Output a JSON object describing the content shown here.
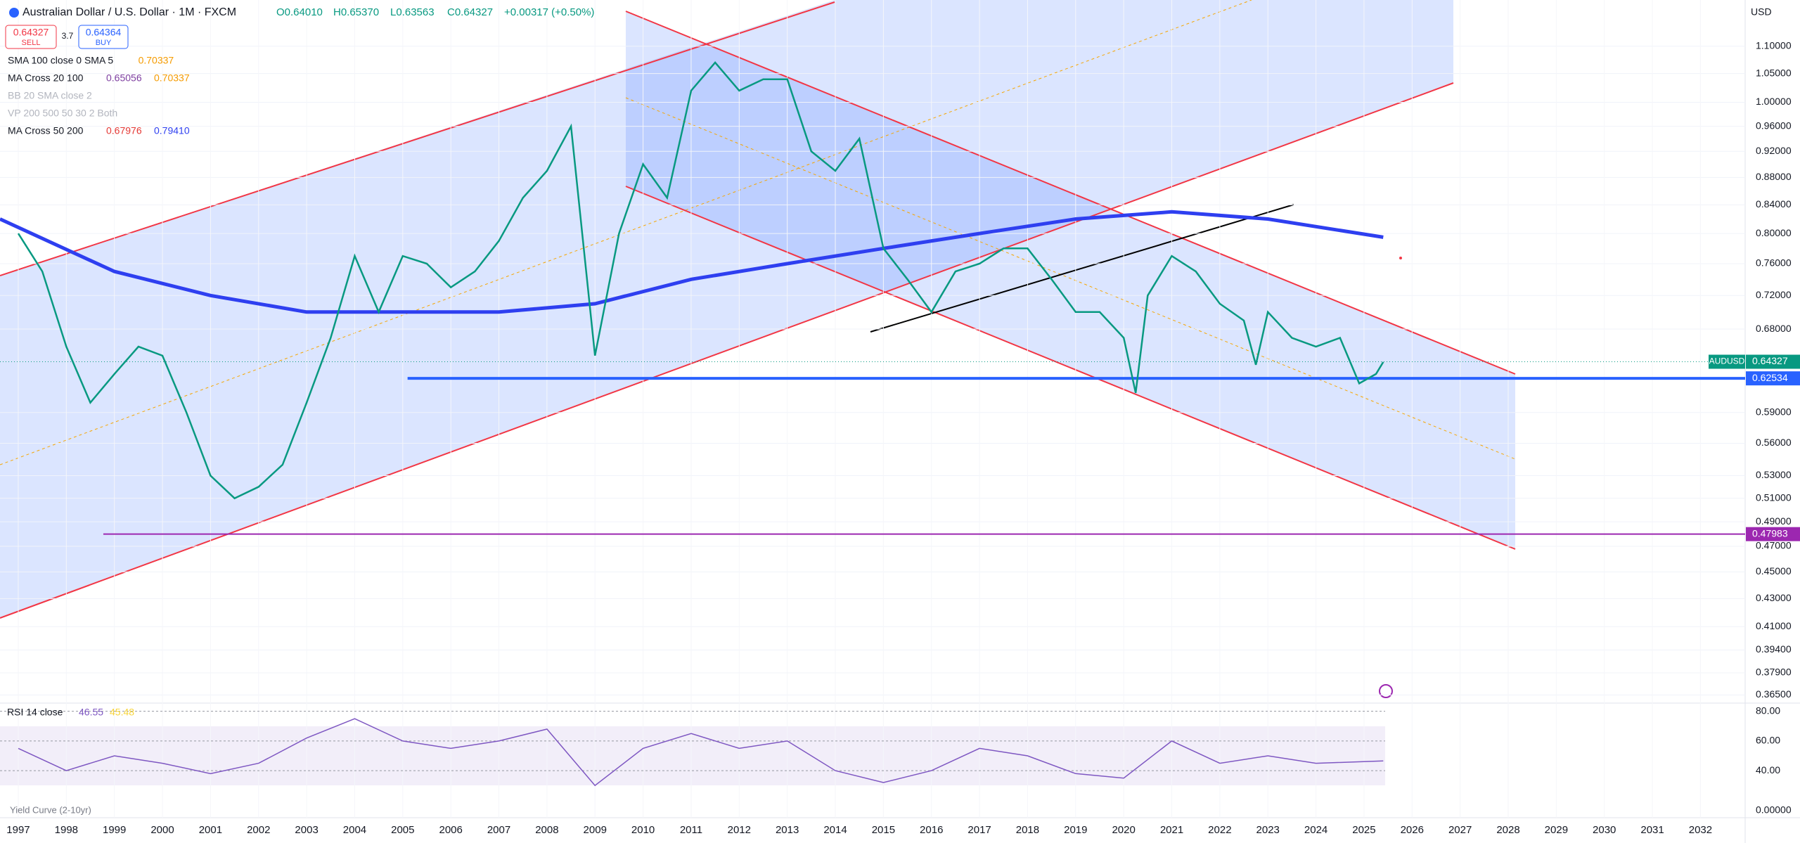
{
  "header": {
    "symbol": "Australian Dollar / U.S. Dollar · 1M · FXCM",
    "open": "O0.64010",
    "high": "H0.65370",
    "low": "L0.63563",
    "close": "C0.64327",
    "change": "+0.00317 (+0.50%)",
    "currency": "USD"
  },
  "trade": {
    "sell_price": "0.64327",
    "sell": "SELL",
    "spread": "3.7",
    "buy_price": "0.64364",
    "buy": "BUY"
  },
  "indicators": [
    {
      "name": "SMA 100 close 0 SMA 5",
      "values": [
        {
          "text": "0.70337",
          "color": "#f59b00"
        }
      ]
    },
    {
      "name": "MA Cross 20 100",
      "values": [
        {
          "text": "0.65056",
          "color": "#7e3fa0"
        },
        {
          "text": "0.70337",
          "color": "#f59b00"
        }
      ]
    },
    {
      "name": "BB 20 SMA close 2",
      "muted": true
    },
    {
      "name": "VP 200 500 50 30 2 Both",
      "muted": true
    },
    {
      "name": "MA Cross 50 200",
      "values": [
        {
          "text": "0.67976",
          "color": "#e53935"
        },
        {
          "text": "0.79410",
          "color": "#2e3ff0"
        }
      ]
    }
  ],
  "price_axis": {
    "ylim": [
      0.36,
      1.19
    ],
    "log": true,
    "ticks": [
      {
        "value": 1.1,
        "label": "1.10000"
      },
      {
        "value": 1.05,
        "label": "1.05000"
      },
      {
        "value": 1.0,
        "label": "1.00000"
      },
      {
        "value": 0.96,
        "label": "0.96000"
      },
      {
        "value": 0.92,
        "label": "0.92000"
      },
      {
        "value": 0.88,
        "label": "0.88000"
      },
      {
        "value": 0.84,
        "label": "0.84000"
      },
      {
        "value": 0.8,
        "label": "0.80000"
      },
      {
        "value": 0.76,
        "label": "0.76000"
      },
      {
        "value": 0.72,
        "label": "0.72000"
      },
      {
        "value": 0.68,
        "label": "0.68000"
      },
      {
        "value": 0.59,
        "label": "0.59000"
      },
      {
        "value": 0.56,
        "label": "0.56000"
      },
      {
        "value": 0.53,
        "label": "0.53000"
      },
      {
        "value": 0.51,
        "label": "0.51000"
      },
      {
        "value": 0.49,
        "label": "0.49000"
      },
      {
        "value": 0.47,
        "label": "0.47000"
      },
      {
        "value": 0.45,
        "label": "0.45000"
      },
      {
        "value": 0.43,
        "label": "0.43000"
      },
      {
        "value": 0.41,
        "label": "0.41000"
      },
      {
        "value": 0.394,
        "label": "0.39400"
      },
      {
        "value": 0.379,
        "label": "0.37900"
      },
      {
        "value": 0.365,
        "label": "0.36500"
      }
    ]
  },
  "time_axis": {
    "xlim": [
      1996.62,
      2032.93
    ],
    "ticks": [
      1997,
      1998,
      1999,
      2000,
      2001,
      2002,
      2003,
      2004,
      2005,
      2006,
      2007,
      2008,
      2009,
      2010,
      2011,
      2012,
      2013,
      2014,
      2015,
      2016,
      2017,
      2018,
      2019,
      2020,
      2021,
      2022,
      2023,
      2024,
      2025,
      2026,
      2027,
      2028,
      2029,
      2030,
      2031,
      2032
    ]
  },
  "price": {
    "name": "AUDUSD",
    "color": "#089981",
    "last": 0.64327,
    "x": [
      1997.0,
      1997.5,
      1998.0,
      1998.5,
      1999.0,
      1999.5,
      2000.0,
      2000.5,
      2001.0,
      2001.5,
      2002.0,
      2002.5,
      2003.0,
      2003.5,
      2004.0,
      2004.5,
      2005.0,
      2005.5,
      2006.0,
      2006.5,
      2007.0,
      2007.5,
      2008.0,
      2008.5,
      2009.0,
      2009.5,
      2010.0,
      2010.5,
      2011.0,
      2011.5,
      2012.0,
      2012.5,
      2013.0,
      2013.5,
      2014.0,
      2014.5,
      2015.0,
      2015.5,
      2016.0,
      2016.5,
      2017.0,
      2017.5,
      2018.0,
      2018.5,
      2019.0,
      2019.5,
      2020.0,
      2020.25,
      2020.5,
      2021.0,
      2021.5,
      2022.0,
      2022.5,
      2022.75,
      2023.0,
      2023.5,
      2024.0,
      2024.5,
      2024.9,
      2025.25,
      2025.4
    ],
    "close": [
      0.8,
      0.75,
      0.66,
      0.6,
      0.63,
      0.66,
      0.65,
      0.59,
      0.53,
      0.51,
      0.52,
      0.54,
      0.6,
      0.67,
      0.77,
      0.7,
      0.77,
      0.76,
      0.73,
      0.75,
      0.79,
      0.85,
      0.89,
      0.96,
      0.65,
      0.8,
      0.9,
      0.85,
      1.02,
      1.07,
      1.02,
      1.04,
      1.04,
      0.92,
      0.89,
      0.94,
      0.78,
      0.74,
      0.7,
      0.75,
      0.76,
      0.78,
      0.78,
      0.74,
      0.7,
      0.7,
      0.67,
      0.61,
      0.72,
      0.77,
      0.75,
      0.71,
      0.69,
      0.64,
      0.7,
      0.67,
      0.66,
      0.67,
      0.62,
      0.63,
      0.643
    ]
  },
  "ma200": {
    "color": "#2e3ff0",
    "x": [
      1996.62,
      1999,
      2001,
      2003,
      2005,
      2007,
      2009,
      2011,
      2013,
      2015,
      2017,
      2019,
      2021,
      2023,
      2025.4
    ],
    "values": [
      0.82,
      0.75,
      0.72,
      0.7,
      0.7,
      0.7,
      0.71,
      0.74,
      0.76,
      0.78,
      0.8,
      0.82,
      0.83,
      0.82,
      0.795
    ]
  },
  "hlines": [
    {
      "value": 0.62534,
      "from": 2005.1,
      "color": "#2962ff"
    },
    {
      "value": 0.47983,
      "from": 1998.77,
      "color": "#9c27b0"
    }
  ],
  "rsi": {
    "title": "RSI 14 close",
    "value": "46.55",
    "signal": "45.48",
    "ylim": [
      14,
      86
    ],
    "ticks": [
      {
        "value": 80,
        "label": "80.00"
      },
      {
        "value": 60,
        "label": "60.00"
      },
      {
        "value": 40,
        "label": "40.00"
      }
    ],
    "x": [
      1997,
      1998,
      1999,
      2000,
      2001,
      2002,
      2003,
      2004,
      2005,
      2006,
      2007,
      2008,
      2009,
      2010,
      2011,
      2012,
      2013,
      2014,
      2015,
      2016,
      2017,
      2018,
      2019,
      2020,
      2021,
      2022,
      2023,
      2024,
      2025.4
    ],
    "values": [
      55,
      40,
      50,
      45,
      38,
      45,
      62,
      75,
      60,
      55,
      60,
      68,
      30,
      55,
      65,
      55,
      60,
      40,
      32,
      40,
      55,
      50,
      38,
      35,
      60,
      45,
      50,
      45,
      46.55
    ]
  },
  "yield_curve": {
    "title": "Yield Curve (2-10yr)",
    "tick": {
      "value": 0,
      "label": "0.00000"
    }
  }
}
